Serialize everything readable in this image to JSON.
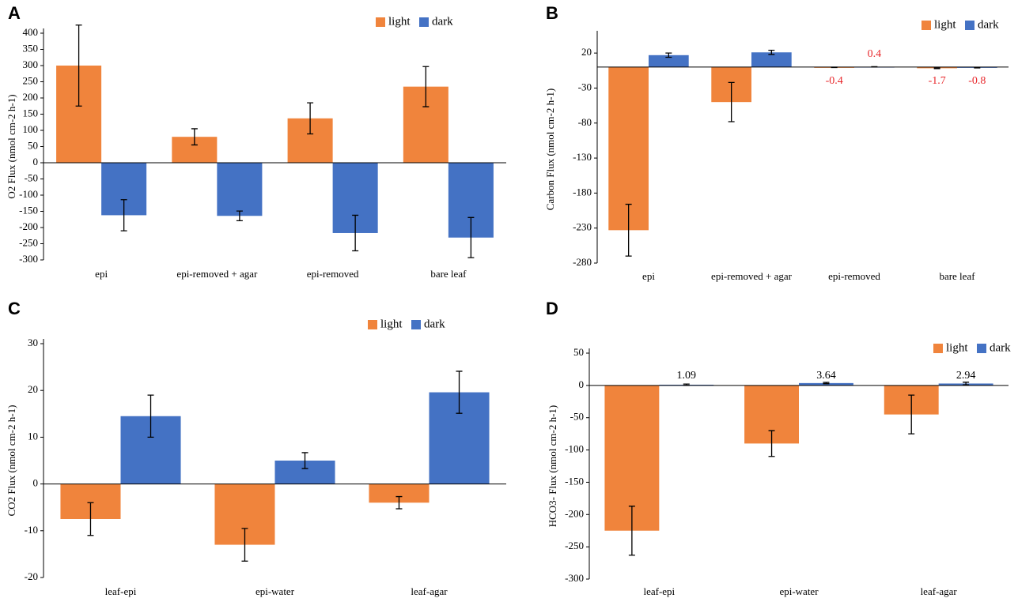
{
  "chart_data": [
    {
      "type": "bar",
      "title": "A",
      "y_label": "O2 Flux (nmol cm-2 h-1)",
      "categories": [
        "epi",
        "epi-removed + agar",
        "epi-removed",
        "bare leaf"
      ],
      "series": [
        {
          "name": "light",
          "color": "#f0843c",
          "values": [
            300,
            80,
            137,
            235
          ],
          "errors": [
            125,
            25,
            48,
            62
          ]
        },
        {
          "name": "dark",
          "color": "#4472c4",
          "values": [
            -162,
            -164,
            -217,
            -231
          ],
          "errors": [
            48,
            15,
            55,
            62
          ]
        }
      ],
      "ylim": [
        -300,
        400
      ],
      "yticks": [
        -300,
        -250,
        -200,
        -150,
        -100,
        -50,
        0,
        50,
        100,
        150,
        200,
        250,
        300,
        350,
        400
      ]
    },
    {
      "type": "bar",
      "title": "B",
      "y_label": "Carbon Flux (nmol cm-2 h-1)",
      "categories": [
        "epi",
        "epi-removed + agar",
        "epi-removed",
        "bare leaf"
      ],
      "series": [
        {
          "name": "light",
          "color": "#f0843c",
          "values": [
            -233,
            -50,
            -0.4,
            -1.7
          ],
          "errors": [
            37,
            28,
            0.3,
            0.5
          ],
          "value_labels": [
            null,
            null,
            "-0.4",
            "-1.7"
          ]
        },
        {
          "name": "dark",
          "color": "#4472c4",
          "values": [
            17,
            21,
            0.4,
            -0.8
          ],
          "errors": [
            3,
            3,
            0.2,
            0.4
          ],
          "value_labels": [
            null,
            null,
            "0.4",
            "-0.8"
          ]
        }
      ],
      "value_label_color": "#e8262a",
      "ylim": [
        -280,
        45
      ],
      "yticks": [
        -280,
        -230,
        -180,
        -130,
        -80,
        -30,
        20
      ]
    },
    {
      "type": "bar",
      "title": "C",
      "y_label": "CO2 Flux (nmol cm-2 h-1)",
      "categories": [
        "leaf-epi",
        "epi-water",
        "leaf-agar"
      ],
      "series": [
        {
          "name": "light",
          "color": "#f0843c",
          "values": [
            -7.5,
            -13,
            -4
          ],
          "errors": [
            3.5,
            3.5,
            1.3
          ]
        },
        {
          "name": "dark",
          "color": "#4472c4",
          "values": [
            14.5,
            5,
            19.6
          ],
          "errors": [
            4.5,
            1.7,
            4.5
          ]
        }
      ],
      "ylim": [
        -20,
        30
      ],
      "yticks": [
        -20,
        -10,
        0,
        10,
        20,
        30
      ]
    },
    {
      "type": "bar",
      "title": "D",
      "y_label": "HCO3- Flux (nmol cm-2 h-1)",
      "categories": [
        "leaf-epi",
        "epi-water",
        "leaf-agar"
      ],
      "series": [
        {
          "name": "light",
          "color": "#f0843c",
          "values": [
            -225,
            -90,
            -45
          ],
          "errors": [
            38,
            20,
            30
          ]
        },
        {
          "name": "dark",
          "color": "#4472c4",
          "values": [
            1.09,
            3.64,
            2.94
          ],
          "errors": [
            1,
            1,
            2
          ],
          "value_labels": [
            "1.09",
            "3.64",
            "2.94"
          ]
        }
      ],
      "value_label_color": "#000000",
      "ylim": [
        -300,
        50
      ],
      "yticks": [
        -300,
        -250,
        -200,
        -150,
        -100,
        -50,
        0,
        50
      ]
    }
  ]
}
